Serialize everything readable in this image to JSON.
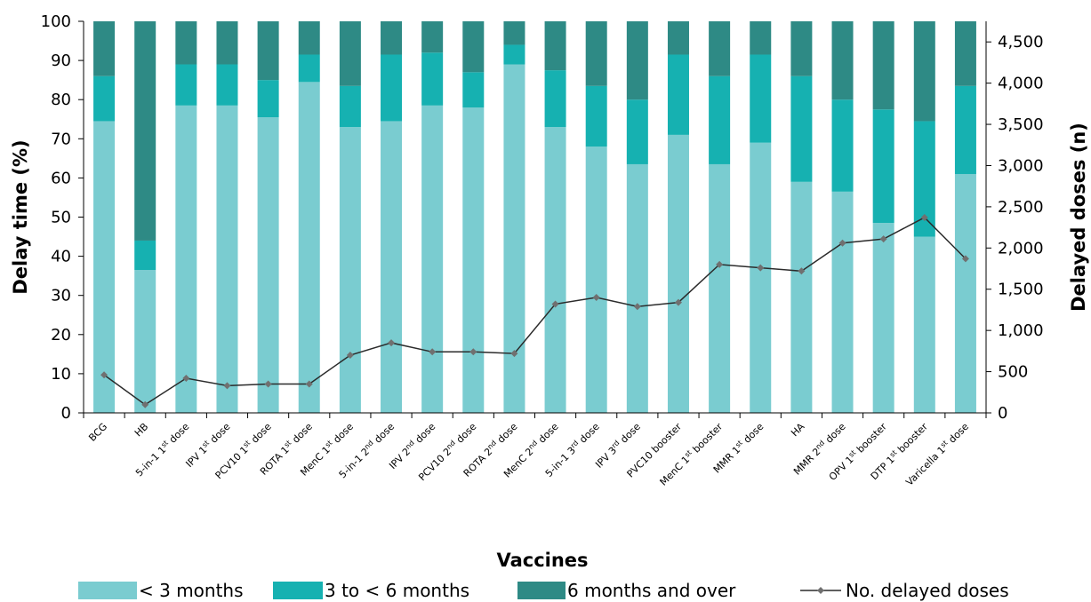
{
  "chart_data": {
    "type": "bar",
    "stacked": true,
    "xlabel": "Vaccines",
    "ylabel": "Delay time  (%)",
    "y2label": "Delayed doses  (n)",
    "ylim": [
      0,
      100
    ],
    "y2lim": [
      0,
      4750
    ],
    "yticks": [
      "0",
      "10",
      "20",
      "30",
      "40",
      "50",
      "60",
      "70",
      "80",
      "90",
      "100"
    ],
    "y2ticks": [
      "0",
      "500",
      "1,000",
      "1,500",
      "2,000",
      "2,500",
      "3,000",
      "3,500",
      "4,000",
      "4,500"
    ],
    "categories": [
      {
        "base": "BCG"
      },
      {
        "base": "HB"
      },
      {
        "base": "5-in-1 1",
        "sup": "st",
        "tail": " dose"
      },
      {
        "base": "IPV 1",
        "sup": "st",
        "tail": " dose"
      },
      {
        "base": "PCV10 1",
        "sup": "st",
        "tail": " dose"
      },
      {
        "base": "ROTA 1",
        "sup": "st",
        "tail": " dose"
      },
      {
        "base": "MenC 1",
        "sup": "st",
        "tail": " dose"
      },
      {
        "base": "5-in-1 2",
        "sup": "nd",
        "tail": " dose"
      },
      {
        "base": "IPV 2",
        "sup": "nd",
        "tail": " dose"
      },
      {
        "base": "PCV10 2",
        "sup": "nd",
        "tail": " dose"
      },
      {
        "base": "ROTA 2",
        "sup": "nd",
        "tail": " dose"
      },
      {
        "base": "MenC 2",
        "sup": "nd",
        "tail": " dose"
      },
      {
        "base": "5-in-1 3",
        "sup": "rd",
        "tail": " dose"
      },
      {
        "base": "IPV 3",
        "sup": "rd",
        "tail": " dose"
      },
      {
        "base": "PVC10 booster"
      },
      {
        "base": "MenC 1",
        "sup": "st",
        "tail": " booster"
      },
      {
        "base": "MMR 1",
        "sup": "st",
        "tail": " dose"
      },
      {
        "base": "HA"
      },
      {
        "base": "MMR 2",
        "sup": "nd",
        "tail": " dose"
      },
      {
        "base": "OPV 1",
        "sup": "st",
        "tail": " booster"
      },
      {
        "base": "DTP 1",
        "sup": "st",
        "tail": " booster"
      },
      {
        "base": "Varicella 1",
        "sup": "st",
        "tail": " dose"
      }
    ],
    "series": [
      {
        "name": "< 3 months",
        "color": "#7accd0",
        "axis": "left",
        "values": [
          74.5,
          36.5,
          78.5,
          78.5,
          75.5,
          84.5,
          73,
          74.5,
          78.5,
          78,
          89,
          73,
          68,
          63.5,
          71,
          63.5,
          69,
          59,
          56.5,
          48.5,
          45,
          61
        ]
      },
      {
        "name": "3 to < 6 months",
        "color": "#16b1b1",
        "axis": "left",
        "values": [
          11.5,
          7.5,
          10.5,
          10.5,
          9.5,
          7,
          10.5,
          17,
          13.5,
          9,
          5,
          14.5,
          15.5,
          16.5,
          20.5,
          22.5,
          22.5,
          27,
          23.5,
          29,
          29.5,
          22.5
        ]
      },
      {
        "name": "6 months and over",
        "color": "#2e8a85",
        "axis": "left",
        "values": [
          14,
          56,
          11,
          11,
          15,
          8.5,
          16.5,
          8.5,
          8,
          13,
          6,
          12.5,
          16.5,
          20,
          8.5,
          14,
          8.5,
          14,
          20,
          22.5,
          25.5,
          16.5
        ]
      },
      {
        "name": "No. delayed doses",
        "type": "line",
        "color": "#2b2b2b",
        "marker_color": "#707070",
        "axis": "right",
        "values": [
          460,
          100,
          420,
          330,
          350,
          350,
          700,
          850,
          740,
          740,
          720,
          1320,
          1400,
          1290,
          1340,
          1800,
          1760,
          1720,
          2060,
          2110,
          2370,
          1870
        ]
      }
    ],
    "legend": {
      "position": "bottom"
    },
    "grid": false
  }
}
